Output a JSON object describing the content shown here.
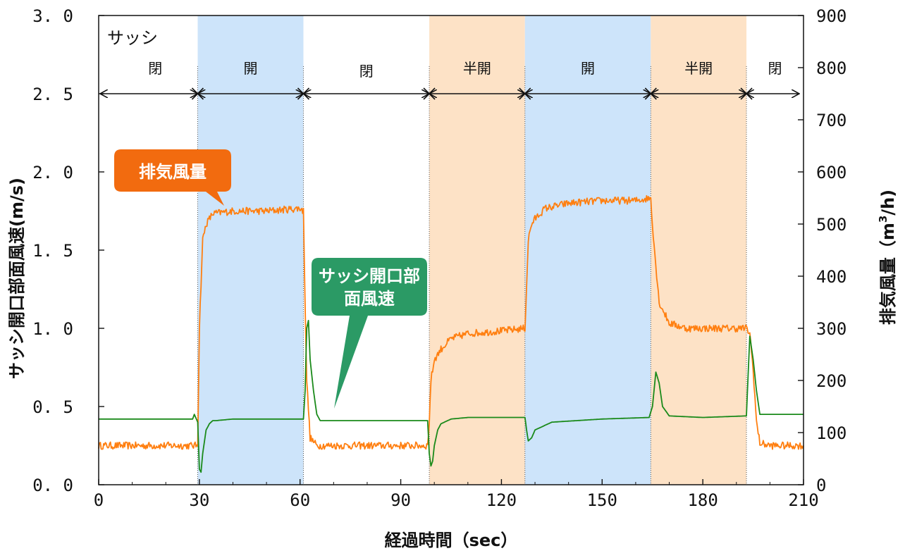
{
  "chart_data": {
    "type": "line",
    "xlabel": "経過時間（sec）",
    "ylabel_left": "サッシ開口部面風速(m/s)",
    "ylabel_right_main": "排気風量（m",
    "ylabel_right_sup": "3",
    "ylabel_right_tail": "/h)",
    "xlim": [
      0,
      210
    ],
    "ylim_left": [
      0,
      3.0
    ],
    "ylim_right": [
      0,
      900
    ],
    "x_ticks": [
      0,
      30,
      60,
      90,
      120,
      150,
      180,
      210
    ],
    "x_tick_labels": [
      "0",
      "30",
      "60",
      "90",
      "120",
      "150",
      "180",
      "210"
    ],
    "y_left_ticks": [
      0,
      0.5,
      1.0,
      1.5,
      2.0,
      2.5,
      3.0
    ],
    "y_left_tick_labels": [
      "0. 0",
      "0. 5",
      "1. 0",
      "1. 5",
      "2. 0",
      "2. 5",
      "3. 0"
    ],
    "y_right_ticks": [
      0,
      100,
      200,
      300,
      400,
      500,
      600,
      700,
      800,
      900
    ],
    "y_right_tick_labels": [
      "0",
      "100",
      "200",
      "300",
      "400",
      "500",
      "600",
      "700",
      "800",
      "900"
    ],
    "sash_title": "サッシ",
    "phases": [
      {
        "label": "閉",
        "start": 0,
        "end": 29.5,
        "fill": "none"
      },
      {
        "label": "開",
        "start": 29.5,
        "end": 61,
        "fill": "blue"
      },
      {
        "label": "閉",
        "start": 61,
        "end": 98.5,
        "fill": "none"
      },
      {
        "label": "半開",
        "start": 98.5,
        "end": 127,
        "fill": "orange"
      },
      {
        "label": "開",
        "start": 127,
        "end": 164.5,
        "fill": "blue"
      },
      {
        "label": "半開",
        "start": 164.5,
        "end": 193,
        "fill": "orange"
      },
      {
        "label": "閉",
        "start": 193,
        "end": 210,
        "fill": "none"
      }
    ],
    "series": [
      {
        "name": "排気風量",
        "axis": "right",
        "color": "#ff7f10",
        "x": [
          0,
          29,
          29.5,
          30,
          31,
          32,
          34,
          40,
          50,
          60,
          61,
          61.5,
          62,
          63,
          65,
          70,
          80,
          90,
          98,
          98.5,
          99,
          100,
          102,
          105,
          110,
          120,
          127,
          127.5,
          128,
          129,
          130,
          133,
          140,
          150,
          160,
          164.5,
          165,
          166,
          167,
          170,
          175,
          180,
          190,
          193,
          194,
          195,
          196,
          197,
          200,
          210
        ],
        "values": [
          75,
          75,
          80,
          300,
          470,
          500,
          520,
          525,
          525,
          530,
          525,
          350,
          200,
          90,
          75,
          75,
          75,
          75,
          75,
          120,
          200,
          240,
          260,
          280,
          290,
          295,
          300,
          380,
          470,
          500,
          510,
          530,
          540,
          545,
          545,
          550,
          500,
          420,
          350,
          310,
          300,
          300,
          300,
          300,
          290,
          220,
          120,
          80,
          75,
          75
        ]
      },
      {
        "name": "サッシ開口部面風速",
        "axis": "left",
        "color": "#1a8a1a",
        "x": [
          0,
          28,
          28.5,
          29.5,
          30,
          30.5,
          31,
          32,
          33,
          34,
          35,
          40,
          50,
          60,
          61,
          61.5,
          62,
          62.5,
          63,
          64,
          65,
          66,
          70,
          80,
          90,
          98,
          98.5,
          99,
          99.5,
          100,
          101,
          102,
          105,
          110,
          120,
          127,
          127.5,
          128,
          129,
          130,
          135,
          150,
          164,
          165,
          166,
          167,
          168,
          170,
          180,
          193,
          193.5,
          194,
          195,
          196,
          197,
          210
        ],
        "values": [
          0.42,
          0.42,
          0.45,
          0.4,
          0.1,
          0.08,
          0.2,
          0.35,
          0.39,
          0.41,
          0.41,
          0.42,
          0.42,
          0.42,
          0.42,
          0.6,
          1.0,
          1.05,
          0.8,
          0.6,
          0.45,
          0.41,
          0.41,
          0.41,
          0.41,
          0.41,
          0.2,
          0.12,
          0.15,
          0.25,
          0.35,
          0.39,
          0.42,
          0.43,
          0.43,
          0.43,
          0.35,
          0.28,
          0.3,
          0.35,
          0.4,
          0.42,
          0.43,
          0.5,
          0.72,
          0.65,
          0.5,
          0.44,
          0.43,
          0.44,
          0.7,
          0.95,
          0.8,
          0.6,
          0.45,
          0.45
        ]
      }
    ],
    "callout_exhaust": "排気風量",
    "callout_velocity_line1": "サッシ開口部",
    "callout_velocity_line2": "面風速",
    "colors": {
      "exhaust": "#ff7f10",
      "velocity": "#1a8a1a",
      "open_band": "#cde4fa",
      "half_band": "#fde2c6",
      "callout_exhaust_bg": "#f26b0f",
      "callout_velocity_bg": "#2b9a65"
    }
  }
}
